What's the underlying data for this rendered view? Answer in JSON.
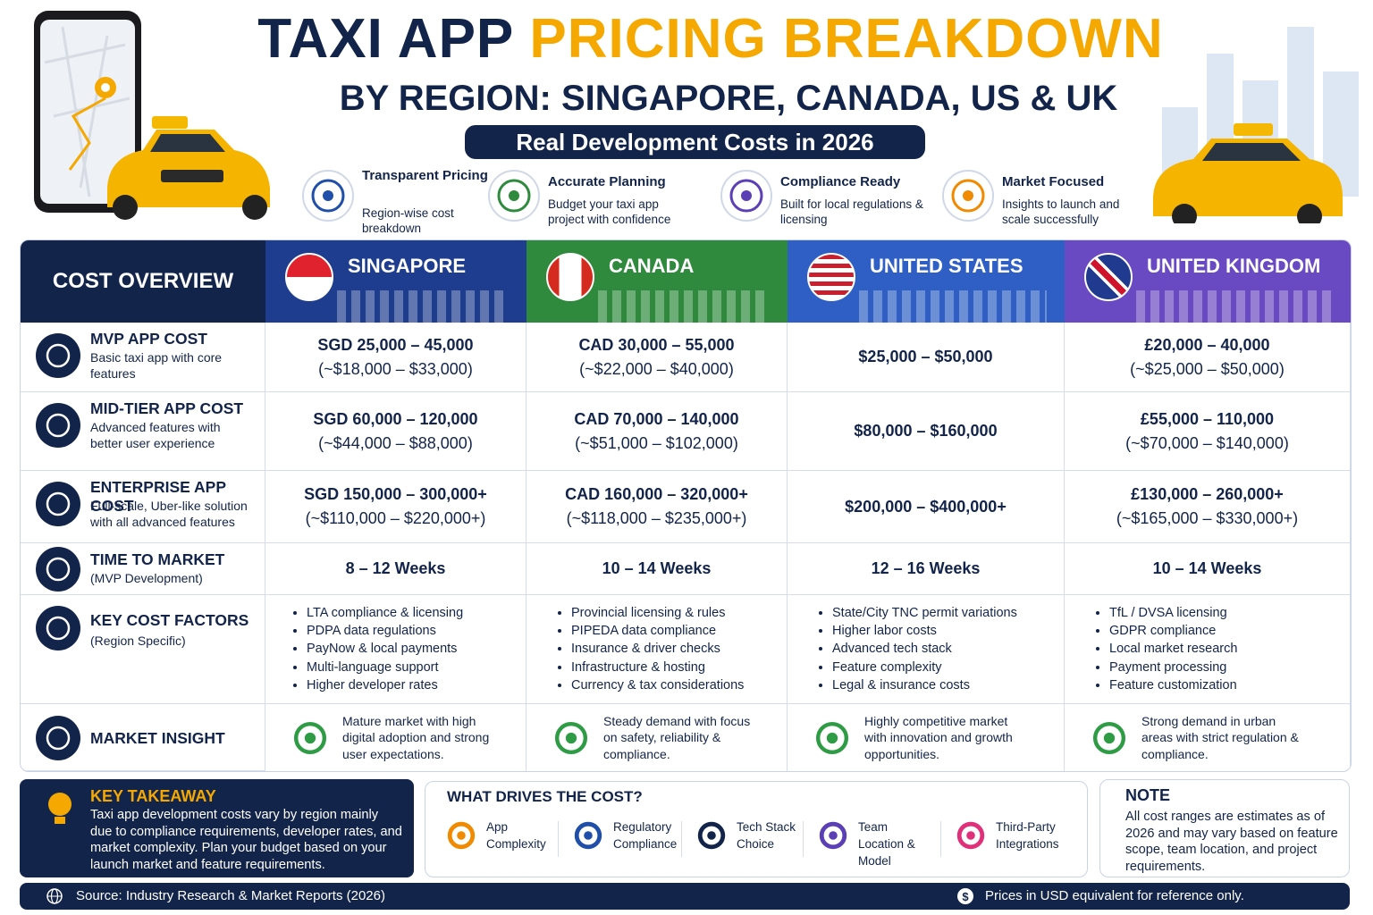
{
  "header": {
    "title_part1": "TAXI APP",
    "title_part2": "PRICING BREAKDOWN",
    "subtitle": "BY REGION: SINGAPORE, CANADA, US & UK",
    "badge": "Real Development Costs in 2026"
  },
  "features": [
    {
      "title": "Transparent Pricing",
      "desc": "Region-wise cost breakdown"
    },
    {
      "title": "Accurate Planning",
      "desc": "Budget your taxi app project with confidence"
    },
    {
      "title": "Compliance Ready",
      "desc": "Built for local regulations & licensing"
    },
    {
      "title": "Market Focused",
      "desc": "Insights to launch and scale successfully"
    }
  ],
  "table": {
    "corner": "COST OVERVIEW",
    "regions": [
      "SINGAPORE",
      "CANADA",
      "UNITED STATES",
      "UNITED KINGDOM"
    ],
    "rows": [
      {
        "title": "MVP APP COST",
        "desc": "Basic taxi app with core features",
        "cells": [
          [
            "SGD 25,000 – 45,000",
            "(~$18,000 – $33,000)"
          ],
          [
            "CAD 30,000 – 55,000",
            "(~$22,000 – $40,000)"
          ],
          [
            "$25,000 – $50,000"
          ],
          [
            "£20,000 – 40,000",
            "(~$25,000 – $50,000)"
          ]
        ]
      },
      {
        "title": "MID-TIER APP COST",
        "desc": "Advanced features with better user experience",
        "cells": [
          [
            "SGD 60,000 – 120,000",
            "(~$44,000 – $88,000)"
          ],
          [
            "CAD 70,000 – 140,000",
            "(~$51,000 – $102,000)"
          ],
          [
            "$80,000 – $160,000"
          ],
          [
            "£55,000 – 110,000",
            "(~$70,000 – $140,000)"
          ]
        ]
      },
      {
        "title": "ENTERPRISE APP COST",
        "desc": "Full-scale, Uber-like solution with all advanced features",
        "cells": [
          [
            "SGD 150,000 – 300,000+",
            "(~$110,000 – $220,000+)"
          ],
          [
            "CAD 160,000 – 320,000+",
            "(~$118,000 – $235,000+)"
          ],
          [
            "$200,000 – $400,000+"
          ],
          [
            "£130,000 – 260,000+",
            "(~$165,000 – $330,000+)"
          ]
        ]
      },
      {
        "title": "TIME TO MARKET",
        "desc": "(MVP Development)",
        "cells": [
          [
            "8 – 12 Weeks"
          ],
          [
            "10 – 14 Weeks"
          ],
          [
            "12 – 16 Weeks"
          ],
          [
            "10 – 14 Weeks"
          ]
        ]
      }
    ],
    "factors": {
      "title": "KEY COST FACTORS",
      "desc": "(Region Specific)",
      "lists": [
        [
          "LTA compliance & licensing",
          "PDPA data regulations",
          "PayNow & local payments",
          "Multi-language support",
          "Higher developer rates"
        ],
        [
          "Provincial licensing & rules",
          "PIPEDA data compliance",
          "Insurance & driver checks",
          "Infrastructure & hosting",
          "Currency & tax considerations"
        ],
        [
          "State/City TNC permit variations",
          "Higher labor costs",
          "Advanced tech stack",
          "Feature complexity",
          "Legal & insurance costs"
        ],
        [
          "TfL / DVSA licensing",
          "GDPR compliance",
          "Local market research",
          "Payment processing",
          "Feature customization"
        ]
      ]
    },
    "insight": {
      "title": "MARKET INSIGHT",
      "texts": [
        "Mature market with high digital adoption and strong user expectations.",
        "Steady demand with focus on safety, reliability & compliance.",
        "Highly competitive market with innovation and growth opportunities.",
        "Strong demand in urban areas with strict regulation & compliance."
      ]
    }
  },
  "takeaway": {
    "title": "KEY TAKEAWAY",
    "text": "Taxi app development costs vary by region mainly due to compliance requirements, developer rates, and market complexity. Plan your budget based on your launch market and feature requirements."
  },
  "drivers": {
    "title": "WHAT DRIVES THE COST?",
    "items": [
      "App Complexity",
      "Regulatory Compliance",
      "Tech Stack Choice",
      "Team Location & Model",
      "Third-Party Integrations"
    ]
  },
  "note": {
    "title": "NOTE",
    "text": "All cost ranges are estimates as of 2026 and may vary based on feature scope, team location, and project requirements."
  },
  "footer": {
    "source": "Source: Industry Research & Market Reports (2026)",
    "disclaimer": "Prices in USD equivalent for reference only."
  }
}
